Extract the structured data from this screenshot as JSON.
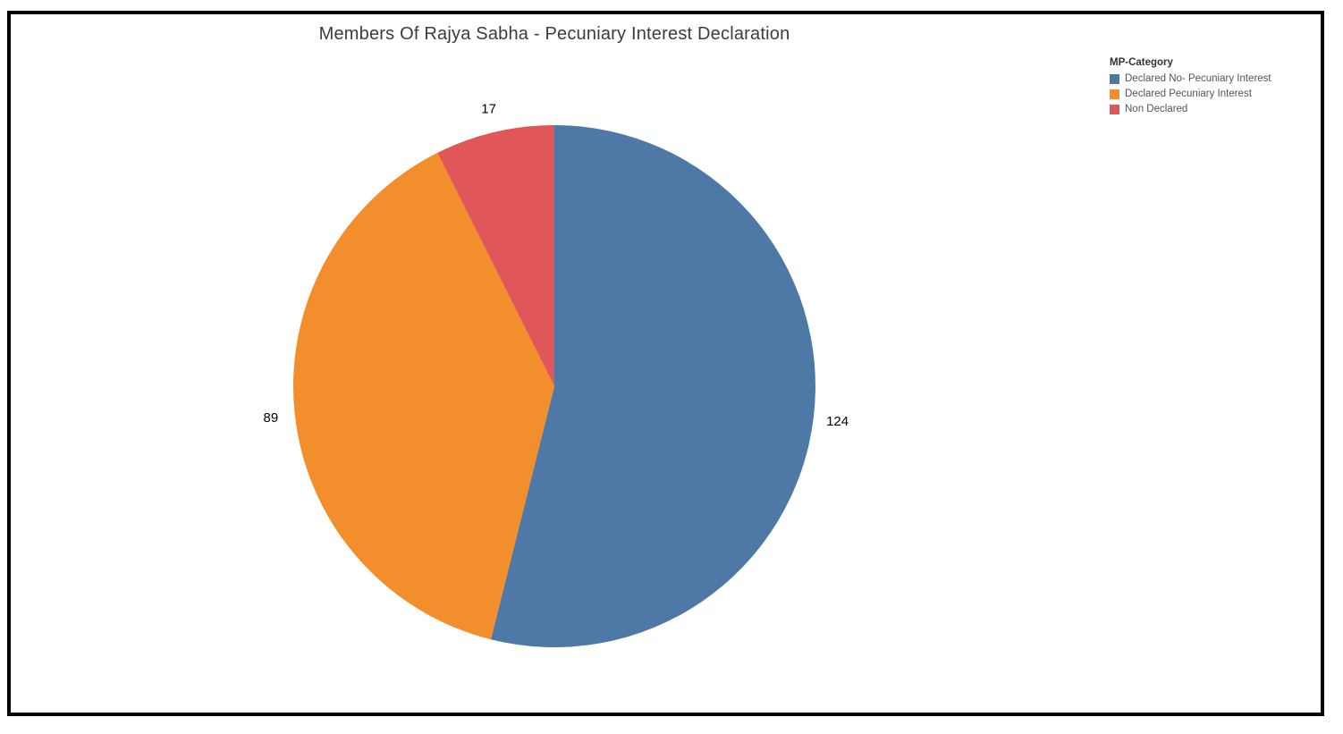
{
  "chart_data": {
    "type": "pie",
    "title": "Members Of Rajya Sabha - Pecuniary Interest Declaration",
    "legend_title": "MP-Category",
    "legend_position": "top-right",
    "start_angle_deg": 0,
    "direction": "clockwise",
    "value_label_color": "#000000",
    "series": [
      {
        "label": "Declared No- Pecuniary Interest",
        "value": 124,
        "color": "#4e79a7"
      },
      {
        "label": "Declared Pecuniary Interest",
        "value": 89,
        "color": "#f28e2b"
      },
      {
        "label": "Non Declared",
        "value": 17,
        "color": "#e15759"
      }
    ]
  }
}
